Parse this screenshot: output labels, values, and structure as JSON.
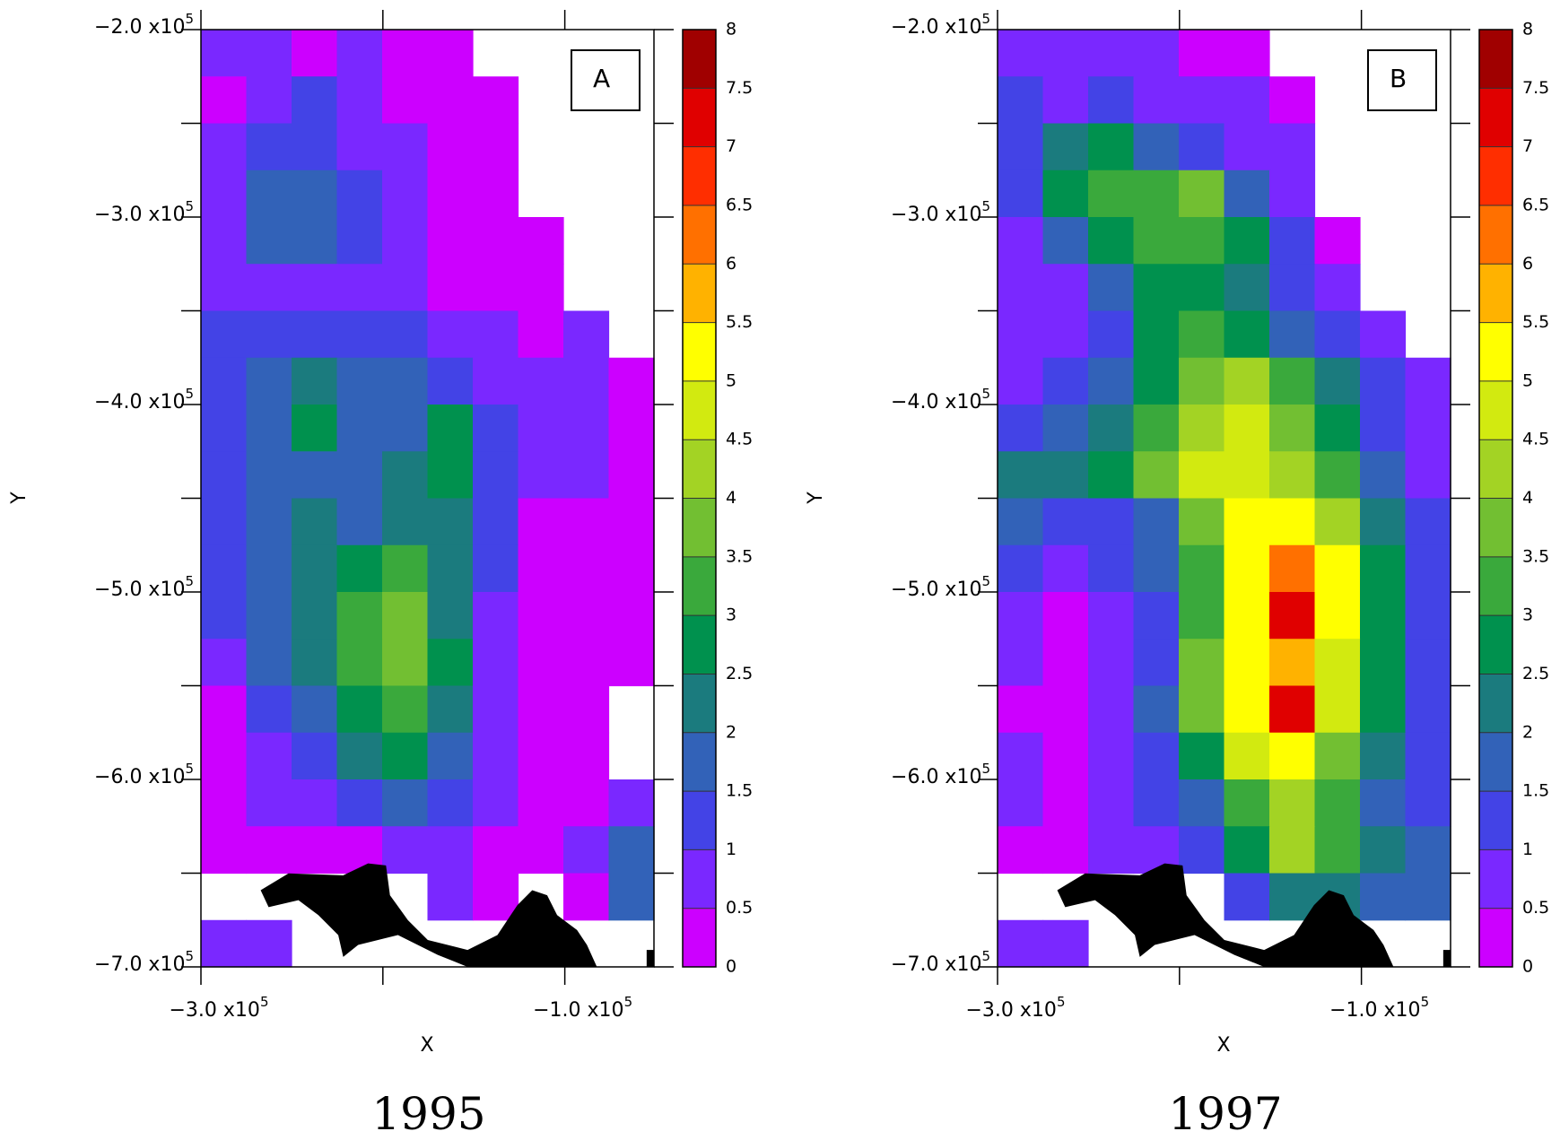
{
  "chart_data": [
    {
      "type": "heatmap",
      "label": "A",
      "caption": "1995",
      "xlabel": "X",
      "ylabel": "Y",
      "xlim": [
        -300000,
        -51000
      ],
      "ylim": [
        -700000,
        -200000
      ],
      "xticks": [
        {
          "value": -300000,
          "label": "−3.0 x10",
          "exponent": "5"
        },
        {
          "value": -100000,
          "label": "−1.0 x10",
          "exponent": "5"
        }
      ],
      "xminorticks": [
        -200000
      ],
      "yticks": [
        {
          "value": -200000,
          "label": "−2.0 x10",
          "exponent": "5"
        },
        {
          "value": -300000,
          "label": "−3.0 x10",
          "exponent": "5"
        },
        {
          "value": -400000,
          "label": "−4.0 x10",
          "exponent": "5"
        },
        {
          "value": -500000,
          "label": "−5.0 x10",
          "exponent": "5"
        },
        {
          "value": -600000,
          "label": "−6.0 x10",
          "exponent": "5"
        },
        {
          "value": -700000,
          "label": "−7.0 x10",
          "exponent": "5"
        }
      ],
      "yminorticks": [
        -250000,
        -350000,
        -450000,
        -550000,
        -650000
      ],
      "levels": [
        0,
        0.5,
        1,
        1.5,
        2,
        2.5,
        3,
        3.5,
        4,
        4.5,
        5,
        5.5,
        6,
        6.5,
        7,
        7.5,
        8
      ],
      "colors": [
        "#cc00ff",
        "#7a28ff",
        "#4343e6",
        "#3262b8",
        "#1b7b7e",
        "#00914e",
        "#3aa93c",
        "#72bf32",
        "#a3d324",
        "#d2ea10",
        "#ffff00",
        "#ffb200",
        "#ff7000",
        "#ff2e00",
        "#e00000",
        "#a00000"
      ],
      "z": [
        [
          0.7,
          0.7,
          0.3,
          0.7,
          0.3,
          0.3,
          null,
          null,
          null,
          null
        ],
        [
          0.3,
          0.7,
          1.2,
          0.7,
          0.3,
          0.3,
          0.3,
          null,
          null,
          null
        ],
        [
          0.7,
          1.2,
          1.2,
          0.7,
          0.7,
          0.3,
          0.3,
          null,
          null,
          null
        ],
        [
          0.7,
          1.7,
          1.7,
          1.2,
          0.7,
          0.3,
          0.3,
          null,
          null,
          null
        ],
        [
          0.7,
          1.7,
          1.7,
          1.2,
          0.7,
          0.3,
          0.3,
          0.3,
          null,
          null
        ],
        [
          0.7,
          0.7,
          0.7,
          0.7,
          0.7,
          0.3,
          0.3,
          0.3,
          null,
          null
        ],
        [
          1.2,
          1.2,
          1.2,
          1.2,
          1.2,
          0.7,
          0.7,
          0.3,
          0.7,
          null
        ],
        [
          1.2,
          1.7,
          2.2,
          1.7,
          1.7,
          1.2,
          0.7,
          0.7,
          0.7,
          0.3
        ],
        [
          1.2,
          1.7,
          2.7,
          1.7,
          1.7,
          2.7,
          1.2,
          0.7,
          0.7,
          0.3
        ],
        [
          1.2,
          1.7,
          1.7,
          1.7,
          2.2,
          2.7,
          1.2,
          0.7,
          0.7,
          0.3
        ],
        [
          1.2,
          1.7,
          2.2,
          1.7,
          2.2,
          2.2,
          1.2,
          0.3,
          0.3,
          0.3
        ],
        [
          1.2,
          1.7,
          2.2,
          2.7,
          3.2,
          2.2,
          1.2,
          0.3,
          0.3,
          0.3
        ],
        [
          1.2,
          1.7,
          2.2,
          3.2,
          3.7,
          2.2,
          0.7,
          0.3,
          0.3,
          0.3
        ],
        [
          0.7,
          1.7,
          2.2,
          3.2,
          3.7,
          2.7,
          0.7,
          0.3,
          0.3,
          0.3
        ],
        [
          0.3,
          1.2,
          1.7,
          2.7,
          3.2,
          2.2,
          0.7,
          0.3,
          0.3,
          null
        ],
        [
          0.3,
          0.7,
          1.2,
          2.2,
          2.7,
          1.7,
          0.7,
          0.3,
          0.3,
          null
        ],
        [
          0.3,
          0.7,
          0.7,
          1.2,
          1.7,
          1.2,
          0.7,
          0.3,
          0.3,
          0.7
        ],
        [
          0.3,
          0.3,
          0.3,
          0.3,
          0.7,
          0.7,
          0.3,
          0.3,
          0.7,
          1.7
        ],
        [
          null,
          null,
          null,
          null,
          null,
          0.7,
          0.3,
          null,
          0.3,
          1.7
        ],
        [
          0.7,
          0.7,
          null,
          null,
          null,
          null,
          null,
          null,
          null,
          null
        ]
      ]
    },
    {
      "type": "heatmap",
      "label": "B",
      "caption": "1997",
      "xlabel": "X",
      "ylabel": "Y",
      "xlim": [
        -300000,
        -51000
      ],
      "ylim": [
        -700000,
        -200000
      ],
      "xticks": [
        {
          "value": -300000,
          "label": "−3.0 x10",
          "exponent": "5"
        },
        {
          "value": -100000,
          "label": "−1.0 x10",
          "exponent": "5"
        }
      ],
      "xminorticks": [
        -200000
      ],
      "yticks": [
        {
          "value": -200000,
          "label": "−2.0 x10",
          "exponent": "5"
        },
        {
          "value": -300000,
          "label": "−3.0 x10",
          "exponent": "5"
        },
        {
          "value": -400000,
          "label": "−4.0 x10",
          "exponent": "5"
        },
        {
          "value": -500000,
          "label": "−5.0 x10",
          "exponent": "5"
        },
        {
          "value": -600000,
          "label": "−6.0 x10",
          "exponent": "5"
        },
        {
          "value": -700000,
          "label": "−7.0 x10",
          "exponent": "5"
        }
      ],
      "yminorticks": [
        -250000,
        -350000,
        -450000,
        -550000,
        -650000
      ],
      "levels": [
        0,
        0.5,
        1,
        1.5,
        2,
        2.5,
        3,
        3.5,
        4,
        4.5,
        5,
        5.5,
        6,
        6.5,
        7,
        7.5,
        8
      ],
      "colors": [
        "#cc00ff",
        "#7a28ff",
        "#4343e6",
        "#3262b8",
        "#1b7b7e",
        "#00914e",
        "#3aa93c",
        "#72bf32",
        "#a3d324",
        "#d2ea10",
        "#ffff00",
        "#ffb200",
        "#ff7000",
        "#ff2e00",
        "#e00000",
        "#a00000"
      ],
      "z": [
        [
          0.7,
          0.7,
          0.7,
          0.7,
          0.3,
          0.3,
          null,
          null,
          null,
          null
        ],
        [
          1.2,
          0.7,
          1.2,
          0.7,
          0.7,
          0.7,
          0.3,
          null,
          null,
          null
        ],
        [
          1.2,
          2.2,
          2.7,
          1.7,
          1.2,
          0.7,
          0.7,
          null,
          null,
          null
        ],
        [
          1.2,
          2.7,
          3.2,
          3.2,
          3.7,
          1.7,
          0.7,
          null,
          null,
          null
        ],
        [
          0.7,
          1.7,
          2.7,
          3.2,
          3.2,
          2.7,
          1.2,
          0.3,
          null,
          null
        ],
        [
          0.7,
          0.7,
          1.7,
          2.7,
          2.7,
          2.2,
          1.2,
          0.7,
          null,
          null
        ],
        [
          0.7,
          0.7,
          1.2,
          2.7,
          3.2,
          2.7,
          1.7,
          1.2,
          0.7,
          null
        ],
        [
          0.7,
          1.2,
          1.7,
          2.7,
          3.7,
          4.2,
          3.2,
          2.2,
          1.2,
          0.7
        ],
        [
          1.2,
          1.7,
          2.2,
          3.2,
          4.2,
          4.7,
          3.7,
          2.7,
          1.2,
          0.7
        ],
        [
          2.2,
          2.2,
          2.7,
          3.7,
          4.7,
          4.7,
          4.2,
          3.2,
          1.7,
          0.7
        ],
        [
          1.7,
          1.2,
          1.2,
          1.7,
          3.7,
          5.2,
          5.2,
          4.2,
          2.2,
          1.2
        ],
        [
          1.2,
          0.7,
          1.2,
          1.7,
          3.2,
          5.2,
          6.2,
          5.2,
          2.7,
          1.2
        ],
        [
          0.7,
          0.3,
          0.7,
          1.2,
          3.2,
          5.2,
          7.2,
          5.2,
          2.7,
          1.2
        ],
        [
          0.7,
          0.3,
          0.7,
          1.2,
          3.7,
          5.2,
          5.7,
          4.7,
          2.7,
          1.2
        ],
        [
          0.3,
          0.3,
          0.7,
          1.7,
          3.7,
          5.2,
          7.2,
          4.7,
          2.7,
          1.2
        ],
        [
          0.7,
          0.3,
          0.7,
          1.2,
          2.7,
          4.7,
          5.2,
          3.7,
          2.2,
          1.2
        ],
        [
          0.7,
          0.3,
          0.7,
          1.2,
          1.7,
          3.2,
          4.2,
          3.2,
          1.7,
          1.2
        ],
        [
          0.3,
          0.3,
          0.7,
          0.7,
          1.2,
          2.7,
          4.2,
          3.2,
          2.2,
          1.7
        ],
        [
          null,
          null,
          null,
          null,
          null,
          1.2,
          2.2,
          2.2,
          1.7,
          1.7
        ],
        [
          0.7,
          0.7,
          null,
          null,
          null,
          null,
          null,
          null,
          null,
          null
        ]
      ]
    }
  ]
}
